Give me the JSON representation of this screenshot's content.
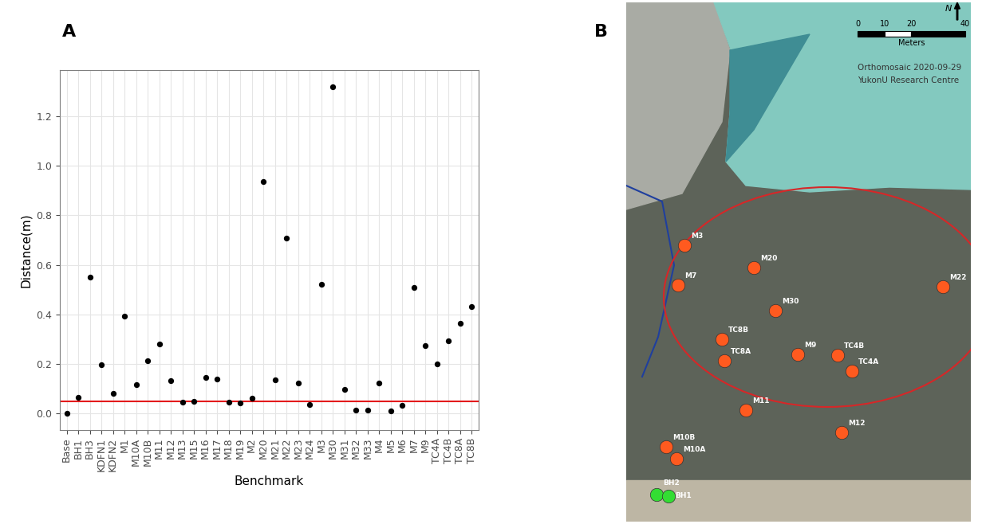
{
  "chart_data": {
    "type": "scatter",
    "panel_label": "A",
    "categories": [
      "Base",
      "BH1",
      "BH3",
      "KDFN1",
      "KDFN2",
      "M1",
      "M10A",
      "M10B",
      "M11",
      "M12",
      "M13",
      "M15",
      "M16",
      "M17",
      "M18",
      "M19",
      "M2",
      "M20",
      "M21",
      "M22",
      "M23",
      "M24",
      "M3",
      "M30",
      "M31",
      "M32",
      "M33",
      "M4",
      "M5",
      "M6",
      "M7",
      "M9",
      "TC4A",
      "TC4B",
      "TC8A",
      "TC8B"
    ],
    "values": [
      0.0,
      0.065,
      0.55,
      0.197,
      0.083,
      0.393,
      0.117,
      0.212,
      0.28,
      0.132,
      0.045,
      0.05,
      0.147,
      0.14,
      0.045,
      0.043,
      0.063,
      0.935,
      0.137,
      0.708,
      0.122,
      0.038,
      0.523,
      1.32,
      0.097,
      0.015,
      0.015,
      0.125,
      0.01,
      0.033,
      0.51,
      0.275,
      0.2,
      0.293,
      0.365,
      0.433
    ],
    "color": "#000000",
    "marker": "circle",
    "xlabel": "Benchmark",
    "ylabel": "Distance(m)",
    "ylim": [
      -0.066,
      1.386
    ],
    "yticks": [
      0.0,
      0.2,
      0.4,
      0.6,
      0.8,
      1.0,
      1.2
    ],
    "grid": true,
    "threshold": {
      "value": 0.05,
      "color": "#e31a1c"
    }
  },
  "map": {
    "panel_label": "B",
    "title_lines": [
      "Orthomosaic 2020-09-29",
      "YukonU Research Centre"
    ],
    "north": "N",
    "scale_bar": {
      "ticks": [
        0,
        10,
        20,
        40
      ],
      "unit": "Meters"
    },
    "benchmarks": {
      "color": "#ff5a1f",
      "labels": [
        "M3",
        "M7",
        "M20",
        "M22",
        "M30",
        "TC8B",
        "TC8A",
        "M9",
        "TC4B",
        "TC4A",
        "M11",
        "M12",
        "M10B",
        "M10A"
      ]
    },
    "boreholes": {
      "color": "#33dd33",
      "labels": [
        "BH2",
        "BH1"
      ]
    }
  }
}
